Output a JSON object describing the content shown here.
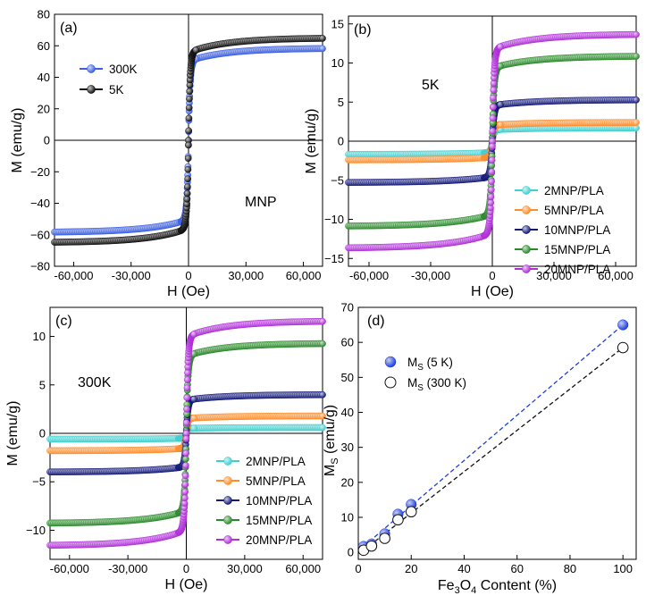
{
  "chart_data": [
    {
      "id": "a",
      "type": "scatter",
      "panel_label": "(a)",
      "annotation": "MNP",
      "xlabel": "H (Oe)",
      "ylabel": "M (emu/g)",
      "xlim": [
        -70000,
        70000
      ],
      "ylim": [
        -80,
        80
      ],
      "xticks": [
        -60000,
        -30000,
        0,
        30000,
        60000
      ],
      "xtick_labels": [
        "-60,000",
        "-30,000",
        "0",
        "30,000",
        "60,000"
      ],
      "yticks": [
        -80,
        -60,
        -40,
        -20,
        0,
        20,
        40,
        60,
        80
      ],
      "ytick_labels": [
        "−80",
        "−60",
        "−40",
        "−20",
        "0",
        "20",
        "40",
        "60",
        "80"
      ],
      "legend_position": "top-left",
      "series": [
        {
          "name": "300K",
          "color": "#3a5fe6",
          "ms": 58.5
        },
        {
          "name": "5K",
          "color": "#111111",
          "ms": 65
        }
      ]
    },
    {
      "id": "b",
      "type": "scatter",
      "panel_label": "(b)",
      "annotation": "5K",
      "xlabel": "H (Oe)",
      "ylabel": "M (emu/g)",
      "xlim": [
        -70000,
        70000
      ],
      "ylim": [
        -16,
        16
      ],
      "xticks": [
        -60000,
        -30000,
        0,
        30000,
        60000
      ],
      "xtick_labels": [
        "-60,000",
        "-30,000",
        "0",
        "30,000",
        "60,000"
      ],
      "yticks": [
        -15,
        -10,
        -5,
        0,
        5,
        10,
        15
      ],
      "ytick_labels": [
        "−15",
        "−10",
        "−5",
        "0",
        "5",
        "10",
        "15"
      ],
      "legend_position": "bottom-right",
      "series": [
        {
          "name": "2MNP/PLA",
          "color": "#3fcfcf",
          "ms": 1.7
        },
        {
          "name": "5MNP/PLA",
          "color": "#ff8c2a",
          "ms": 2.4
        },
        {
          "name": "10MNP/PLA",
          "color": "#14197a",
          "ms": 5.3
        },
        {
          "name": "15MNP/PLA",
          "color": "#2a8a2a",
          "ms": 10.9
        },
        {
          "name": "20MNP/PLA",
          "color": "#b030d8",
          "ms": 13.7
        }
      ]
    },
    {
      "id": "c",
      "type": "scatter",
      "panel_label": "(c)",
      "annotation": "300K",
      "xlabel": "H (Oe)",
      "ylabel": "M (emu/g)",
      "xlim": [
        -70000,
        70000
      ],
      "ylim": [
        -13,
        13
      ],
      "xticks": [
        -60000,
        -30000,
        0,
        30000,
        60000
      ],
      "xtick_labels": [
        "-60,000",
        "-30,000",
        "0",
        "30,000",
        "60,000"
      ],
      "yticks": [
        -10,
        -5,
        0,
        5,
        10
      ],
      "ytick_labels": [
        "−10",
        "−5",
        "0",
        "5",
        "10"
      ],
      "legend_position": "bottom-right",
      "series": [
        {
          "name": "2MNP/PLA",
          "color": "#3fcfcf",
          "ms": 0.6
        },
        {
          "name": "5MNP/PLA",
          "color": "#ff8c2a",
          "ms": 1.8
        },
        {
          "name": "10MNP/PLA",
          "color": "#14197a",
          "ms": 4.0
        },
        {
          "name": "15MNP/PLA",
          "color": "#2a8a2a",
          "ms": 9.3
        },
        {
          "name": "20MNP/PLA",
          "color": "#b030d8",
          "ms": 11.6
        }
      ]
    },
    {
      "id": "d",
      "type": "scatter",
      "panel_label": "(d)",
      "xlabel_parts": [
        "Fe",
        "3",
        "O",
        "4",
        " Content (%)"
      ],
      "ylabel_parts": [
        "M",
        "S",
        " (emu/g)"
      ],
      "xlim": [
        0,
        105
      ],
      "ylim": [
        -2,
        70
      ],
      "xticks": [
        0,
        20,
        40,
        60,
        80,
        100
      ],
      "xtick_labels": [
        "0",
        "20",
        "40",
        "60",
        "80",
        "100"
      ],
      "yticks": [
        0,
        10,
        20,
        30,
        40,
        50,
        60,
        70
      ],
      "ytick_labels": [
        "0",
        "10",
        "20",
        "30",
        "40",
        "50",
        "60",
        "70"
      ],
      "legend_position": "top-left",
      "series": [
        {
          "name_parts": [
            "M",
            "S",
            " (5 K)"
          ],
          "marker": "filled",
          "color": "#1f3fdc",
          "x": [
            2,
            5,
            10,
            15,
            20,
            100
          ],
          "y": [
            1.7,
            2.4,
            5.3,
            10.9,
            13.7,
            65.0
          ]
        },
        {
          "name_parts": [
            "M",
            "S",
            " (300 K)"
          ],
          "marker": "open",
          "color": "#111111",
          "x": [
            2,
            5,
            10,
            15,
            20,
            100
          ],
          "y": [
            0.6,
            1.8,
            4.0,
            9.3,
            11.6,
            58.5
          ]
        }
      ]
    }
  ]
}
